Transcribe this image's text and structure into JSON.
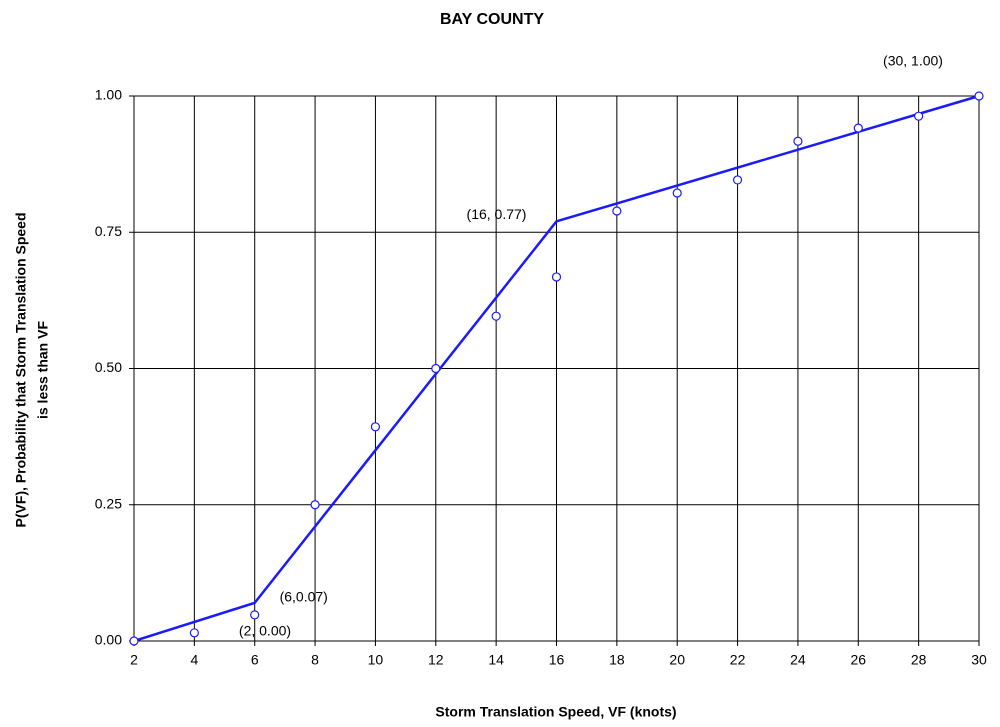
{
  "chart_data": {
    "type": "line",
    "title": "BAY  COUNTY",
    "xlabel": "Storm Translation Speed, VF (knots)",
    "ylabel": [
      "P(VF), Probability that Storm Translation Speed",
      "is less than VF"
    ],
    "xlim": [
      2,
      30
    ],
    "ylim": [
      0,
      1
    ],
    "xticks": [
      2,
      4,
      6,
      8,
      10,
      12,
      14,
      16,
      18,
      20,
      22,
      24,
      26,
      28,
      30
    ],
    "yticks": [
      {
        "value": 0,
        "label": "0.00"
      },
      {
        "value": 0.25,
        "label": "0.25"
      },
      {
        "value": 0.5,
        "label": "0.50"
      },
      {
        "value": 0.75,
        "label": "0.75"
      },
      {
        "value": 1,
        "label": "1.00"
      }
    ],
    "grid": true,
    "series": [
      {
        "mode": "markers",
        "color": "#1a1aff",
        "x": [
          2,
          4,
          6,
          8,
          10,
          12,
          14,
          16,
          18,
          20,
          22,
          24,
          26,
          28,
          30
        ],
        "values": [
          0.0,
          0.015,
          0.048,
          0.25,
          0.393,
          0.5,
          0.596,
          0.668,
          0.789,
          0.822,
          0.846,
          0.917,
          0.941,
          0.963,
          1.0
        ]
      },
      {
        "mode": "lines",
        "color": "#1a1aff",
        "x": [
          2,
          6,
          16,
          30
        ],
        "values": [
          0.0,
          0.07,
          0.77,
          1.0
        ],
        "value_labels": [
          "(2, 0.00)",
          "(6,0.07)",
          "(16, 0.77)",
          "(30, 1.00)"
        ]
      }
    ]
  }
}
